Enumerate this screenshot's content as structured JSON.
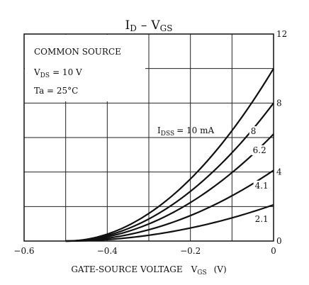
{
  "chart_data": {
    "type": "line",
    "title_main": "I",
    "title_main_sub": "D",
    "title_dash": "–",
    "title_second": "V",
    "title_second_sub": "GS",
    "conditions": [
      "COMMON SOURCE",
      "V",
      "Ta = 25°C"
    ],
    "condition_vds_sub": "DS",
    "condition_vds_value": "= 10 V",
    "xlabel_main": "GATE-SOURCE VOLTAGE",
    "xlabel_var": "V",
    "xlabel_var_sub": "GS",
    "xlabel_unit": "(V)",
    "xlim": [
      -0.6,
      0
    ],
    "ylim": [
      0,
      12
    ],
    "x_ticks": [
      {
        "value": -0.6,
        "label": "−0.6"
      },
      {
        "value": -0.4,
        "label": "−0.4"
      },
      {
        "value": -0.2,
        "label": "−0.2"
      },
      {
        "value": 0,
        "label": "0"
      }
    ],
    "y_ticks": [
      {
        "value": 0,
        "label": "0"
      },
      {
        "value": 4,
        "label": "4"
      },
      {
        "value": 8,
        "label": "8"
      },
      {
        "value": 12,
        "label": "12"
      }
    ],
    "grid": true,
    "series_annotation_prefix": "I",
    "series_annotation_sub": "DSS",
    "series_annotation_suffix": "= 10 mA",
    "series": [
      {
        "name": "10",
        "vp": -0.5,
        "idss": 10,
        "label": ""
      },
      {
        "name": "8",
        "vp": -0.5,
        "idss": 8,
        "label": "8",
        "label_x": -0.055,
        "label_y": 6.2
      },
      {
        "name": "6.2",
        "vp": -0.5,
        "idss": 6.2,
        "label": "6.2",
        "label_x": -0.05,
        "label_y": 5.1
      },
      {
        "name": "4.1",
        "vp": -0.5,
        "idss": 4.1,
        "label": "4.1",
        "label_x": -0.045,
        "label_y": 3.05
      },
      {
        "name": "2.1",
        "vp": -0.5,
        "idss": 2.1,
        "label": "2.1",
        "label_x": -0.045,
        "label_y": 1.1
      }
    ]
  }
}
